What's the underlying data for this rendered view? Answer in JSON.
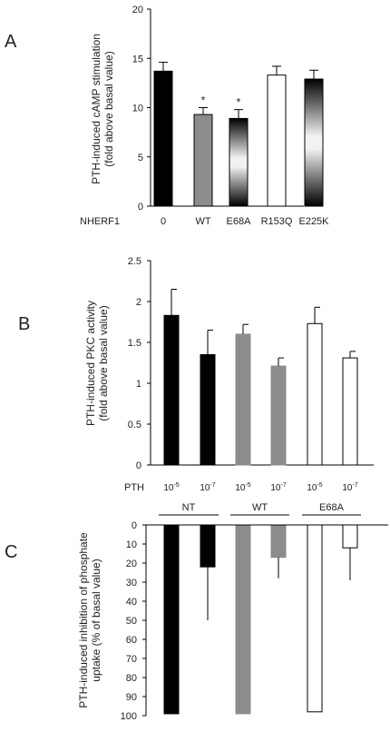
{
  "chart_data": [
    {
      "panel": "A",
      "type": "bar",
      "ylabel_lines": [
        "PTH-induced  cAMP stimulation",
        "(fold above basal value)"
      ],
      "ylim": [
        0,
        20
      ],
      "yticks": [
        "0",
        "5",
        "10",
        "15",
        "20"
      ],
      "row_label": "NHERF1",
      "categories": [
        "0",
        "WT",
        "E68A",
        "R153Q",
        "E225K"
      ],
      "values": [
        13.7,
        9.3,
        8.9,
        13.3,
        12.9
      ],
      "errors": [
        0.9,
        0.7,
        0.9,
        0.9,
        0.9
      ],
      "stars": [
        "",
        "*",
        "*",
        "",
        ""
      ],
      "fills": [
        "black",
        "gray",
        "gradient",
        "white",
        "gradient"
      ]
    },
    {
      "panel": "B",
      "type": "bar",
      "ylabel_lines": [
        "PTH-induced  PKC activity",
        "(fold above basal value)"
      ],
      "ylim": [
        0,
        2.5
      ],
      "yticks": [
        "0",
        "0.5",
        "1",
        "1.5",
        "2",
        "2.5"
      ],
      "row_label": "PTH",
      "categories": [
        {
          "base": "10",
          "exp": "-5"
        },
        {
          "base": "10",
          "exp": "-7"
        },
        {
          "base": "10",
          "exp": "-5"
        },
        {
          "base": "10",
          "exp": "-7"
        },
        {
          "base": "10",
          "exp": "-5"
        },
        {
          "base": "10",
          "exp": "-7"
        }
      ],
      "values": [
        1.83,
        1.35,
        1.6,
        1.21,
        1.73,
        1.31
      ],
      "errors": [
        0.32,
        0.3,
        0.12,
        0.1,
        0.2,
        0.08
      ],
      "fills": [
        "black",
        "black",
        "gray",
        "gray",
        "white",
        "white"
      ],
      "groups": [
        {
          "label": "NT",
          "bars": [
            0,
            1
          ]
        },
        {
          "label": "WT",
          "bars": [
            2,
            3
          ]
        },
        {
          "label": "E68A",
          "bars": [
            4,
            5
          ]
        }
      ]
    },
    {
      "panel": "C",
      "type": "bar",
      "ylabel_lines": [
        "PTH-induced inhibition of phosphate",
        "uptake  (% of basal value)"
      ],
      "ylim": [
        0,
        100
      ],
      "inverted": true,
      "yticks": [
        "0",
        "10",
        "20",
        "30",
        "40",
        "50",
        "60",
        "70",
        "80",
        "90",
        "100"
      ],
      "values": [
        99,
        22,
        99,
        17,
        98,
        12
      ],
      "errors": [
        0,
        28,
        0,
        11,
        0,
        17
      ],
      "fills": [
        "black",
        "black",
        "gray",
        "gray",
        "white",
        "white"
      ]
    }
  ],
  "panel_letters": {
    "a": "A",
    "b": "B",
    "c": "C"
  }
}
